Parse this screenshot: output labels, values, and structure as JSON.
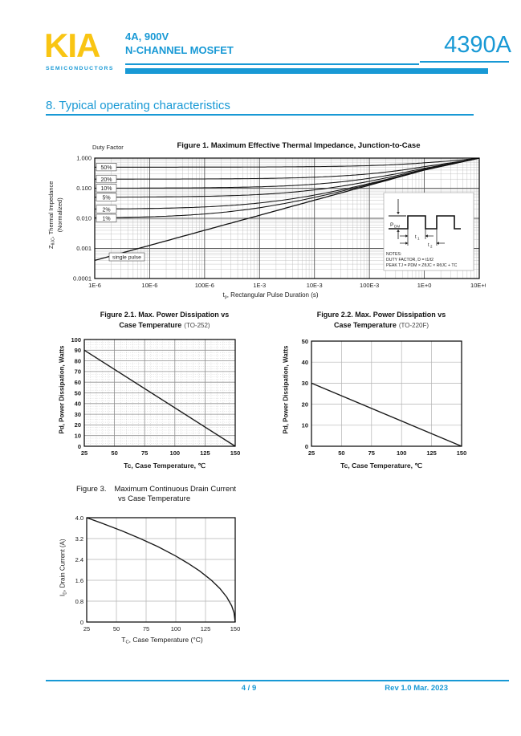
{
  "header": {
    "logo": "KIA",
    "logo_sub": "SEMICONDUCTORS",
    "rating": "4A, 900V",
    "device_type": "N-CHANNEL MOSFET",
    "part_number": "4390A"
  },
  "section": {
    "title": "8. Typical operating characteristics"
  },
  "footer": {
    "page": "4 / 9",
    "revision": "Rev 1.0 Mar. 2023"
  },
  "colors": {
    "accent_cyan": "#1899D5",
    "logo_yellow": "#F9C513"
  },
  "chart_data": [
    {
      "name": "figure1-thermal-impedance",
      "type": "line",
      "scale": "log-log",
      "title": "Figure 1. Maximum Effective Thermal Impedance, Junction-to-Case",
      "legend_title": "Duty Factor",
      "xlabel": {
        "main": "t",
        "sub": "p",
        "rest": ", Rectangular Pulse Duration (s)"
      },
      "ylabel": {
        "main": "Z",
        "sub": "θJC",
        "rest": ", Thermal Impedance",
        "line2": "(Normalized)"
      },
      "xlim": [
        1e-06,
        10
      ],
      "ylim": [
        0.0001,
        1
      ],
      "x_ticks": [
        "1E-6",
        "10E-6",
        "100E-6",
        "1E-3",
        "10E-3",
        "100E-3",
        "1E+0",
        "10E+0"
      ],
      "y_ticks": [
        "1.000",
        "0.100",
        "0.010",
        "0.001",
        "0.0001"
      ],
      "duty_factors": [
        {
          "label": "50%",
          "D": 0.5
        },
        {
          "label": "20%",
          "D": 0.2
        },
        {
          "label": "10%",
          "D": 0.1
        },
        {
          "label": "5%",
          "D": 0.05
        },
        {
          "label": "2%",
          "D": 0.02
        },
        {
          "label": "1%",
          "D": 0.01
        }
      ],
      "single_pulse": {
        "label": "single pulse",
        "x": [
          1e-06,
          1e-05,
          0.0001,
          0.001,
          0.01,
          0.1,
          1,
          10
        ],
        "y": [
          0.0004,
          0.00126,
          0.004,
          0.0126,
          0.04,
          0.126,
          0.4,
          1.0
        ]
      },
      "inset": {
        "pulse_label": "PDM",
        "t1_label": "t1",
        "t2_label": "t2",
        "notes": [
          "NOTES:",
          "DUTY FACTOR, D = t1/t2",
          "PEAK TJ = PDM × ZθJC × RθJC + TC"
        ]
      }
    },
    {
      "name": "figure2-1-power-dissipation-to252",
      "type": "line",
      "title_line1": "Figure 2.1. Max. Power Dissipation vs",
      "title_line2": "Case Temperature",
      "package": "(TO-252)",
      "xlabel": "Tc, Case Temperature, ℃",
      "ylabel": "Pd, Power Dissipation, Watts",
      "xlim": [
        25,
        150
      ],
      "ylim": [
        0,
        100
      ],
      "x_ticks": [
        25,
        50,
        75,
        100,
        125,
        150
      ],
      "y_ticks": [
        0,
        10,
        20,
        30,
        40,
        50,
        60,
        70,
        80,
        90,
        100
      ],
      "series": [
        {
          "name": "max-power-dissipation",
          "x": [
            25,
            150
          ],
          "y": [
            90,
            0
          ]
        }
      ]
    },
    {
      "name": "figure2-2-power-dissipation-to220f",
      "type": "line",
      "title_line1": "Figure 2.2. Max. Power Dissipation vs",
      "title_line2": "Case Temperature",
      "package": "(TO-220F)",
      "xlabel": "Tc, Case Temperature, ℃",
      "ylabel": "Pd, Power Dissipation, Watts",
      "xlim": [
        25,
        150
      ],
      "ylim": [
        0,
        50
      ],
      "x_ticks": [
        25,
        50,
        75,
        100,
        125,
        150
      ],
      "y_ticks": [
        0,
        10,
        20,
        30,
        40,
        50
      ],
      "series": [
        {
          "name": "max-power-dissipation",
          "x": [
            25,
            150
          ],
          "y": [
            30,
            0
          ]
        }
      ]
    },
    {
      "name": "figure3-max-drain-current",
      "type": "line",
      "title_fig": "Figure 3.",
      "title_line1": "Maximum Continuous Drain Current",
      "title_line2": "vs Case Temperature",
      "xlabel": {
        "main": "T",
        "sub": "C",
        "rest": ", Case Temperature (°C)"
      },
      "ylabel": {
        "main": "I",
        "sub": "D",
        "rest": ", Drain Current (A)"
      },
      "xlim": [
        25,
        150
      ],
      "ylim": [
        0,
        4
      ],
      "x_ticks": [
        25,
        50,
        75,
        100,
        125,
        150
      ],
      "y_ticks": [
        "0",
        "0.8",
        "1.6",
        "2.4",
        "3.2",
        "4.0"
      ],
      "series": [
        {
          "name": "max-drain-current",
          "x": [
            25,
            40,
            55,
            70,
            85,
            100,
            110,
            120,
            130,
            137,
            143,
            147,
            149,
            150
          ],
          "y": [
            4.0,
            3.75,
            3.49,
            3.2,
            2.89,
            2.53,
            2.26,
            1.96,
            1.6,
            1.29,
            0.95,
            0.62,
            0.36,
            0
          ]
        }
      ]
    }
  ]
}
